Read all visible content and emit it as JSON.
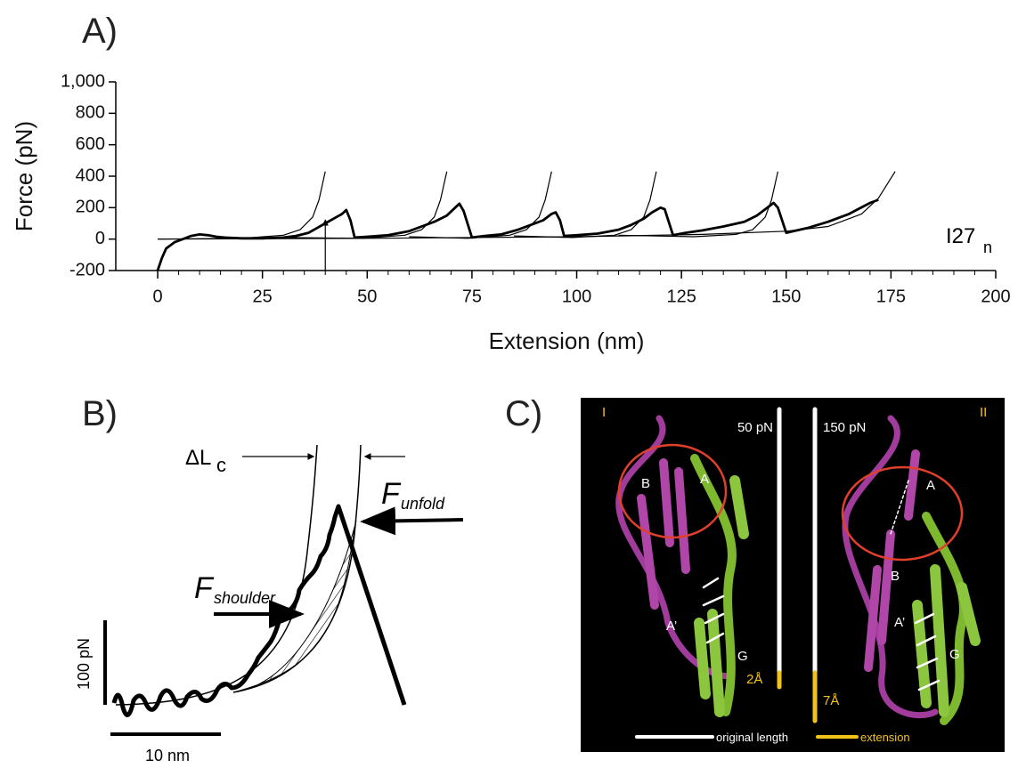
{
  "panel_labels": [
    "A)",
    "B)",
    "C)"
  ],
  "chart_data": {
    "type": "line",
    "xlabel": "Extension (nm)",
    "ylabel": "Force (pN)",
    "annotation": {
      "text": "I27",
      "subscript": "n"
    },
    "arrow": {
      "x": 40,
      "y": 120
    },
    "xlim": [
      -10,
      200
    ],
    "xticks": [
      0,
      25,
      50,
      75,
      100,
      125,
      150,
      175,
      200
    ],
    "ylim": [
      -200,
      1000
    ],
    "yticks": [
      -200,
      0,
      200,
      400,
      600,
      800,
      {
        "value": 1000,
        "label": "1,000"
      }
    ],
    "series": [
      {
        "color": "#000000",
        "x": [
          0,
          1,
          2,
          4,
          6,
          8,
          10,
          12,
          14,
          16,
          20,
          25,
          30,
          33,
          36,
          38,
          40,
          42,
          44,
          45,
          46,
          47,
          50,
          55,
          60,
          63,
          66,
          69,
          71,
          72,
          73,
          75,
          78,
          82,
          86,
          89,
          92,
          94,
          95,
          96,
          97,
          100,
          105,
          110,
          113,
          116,
          118,
          120,
          121,
          123,
          126,
          130,
          135,
          140,
          143,
          145,
          147,
          148,
          150,
          155,
          160,
          165,
          170,
          172
        ],
        "values": [
          -200,
          -120,
          -60,
          -20,
          0,
          20,
          30,
          25,
          15,
          10,
          5,
          5,
          10,
          20,
          40,
          70,
          100,
          130,
          160,
          185,
          120,
          10,
          15,
          25,
          50,
          80,
          110,
          150,
          200,
          225,
          180,
          10,
          20,
          30,
          60,
          90,
          120,
          160,
          170,
          120,
          20,
          25,
          35,
          60,
          90,
          130,
          170,
          200,
          190,
          25,
          40,
          55,
          80,
          110,
          150,
          190,
          230,
          200,
          40,
          70,
          110,
          160,
          230,
          250
        ]
      },
      {
        "color": "#000000",
        "x": [
          0,
          20,
          30,
          34,
          37,
          38.5,
          40
        ],
        "values": [
          0,
          5,
          25,
          60,
          140,
          250,
          430
        ]
      },
      {
        "color": "#000000",
        "x": [
          30,
          49,
          59,
          63,
          66,
          67.5,
          69
        ],
        "values": [
          10,
          5,
          25,
          60,
          140,
          250,
          430
        ]
      },
      {
        "color": "#000000",
        "x": [
          60,
          74,
          84,
          88,
          91,
          92.5,
          94
        ],
        "values": [
          15,
          5,
          25,
          60,
          140,
          250,
          430
        ]
      },
      {
        "color": "#000000",
        "x": [
          85,
          99,
          109,
          113,
          116,
          117.5,
          119
        ],
        "values": [
          20,
          10,
          25,
          60,
          140,
          250,
          430
        ]
      },
      {
        "color": "#000000",
        "x": [
          110,
          128,
          138,
          142,
          145,
          146.5,
          148
        ],
        "values": [
          25,
          15,
          30,
          60,
          140,
          250,
          430
        ]
      },
      {
        "color": "#000000",
        "x": [
          0,
          50,
          100,
          130,
          150,
          160,
          168,
          172,
          176
        ],
        "values": [
          0,
          5,
          15,
          30,
          50,
          80,
          160,
          260,
          430
        ]
      }
    ]
  },
  "panel_b": {
    "delta_l": "ΔL",
    "delta_l_sub": "c",
    "f_unfold": "F",
    "f_unfold_sub": "unfold",
    "f_shoulder": "F",
    "f_shoulder_sub": "shoulder",
    "scale_force": "100 pN",
    "scale_ext": "10 nm"
  },
  "panel_c": {
    "state_1": "I",
    "state_2": "II",
    "force_1": "50 pN",
    "force_2": "150 pN",
    "strands_1": [
      "B",
      "A",
      "A’",
      "G"
    ],
    "strands_2": [
      "A",
      "B",
      "A’",
      "G"
    ],
    "ext_1": "2Å",
    "ext_2": "7Å",
    "legend_original": "original length",
    "legend_extension": "extension"
  }
}
